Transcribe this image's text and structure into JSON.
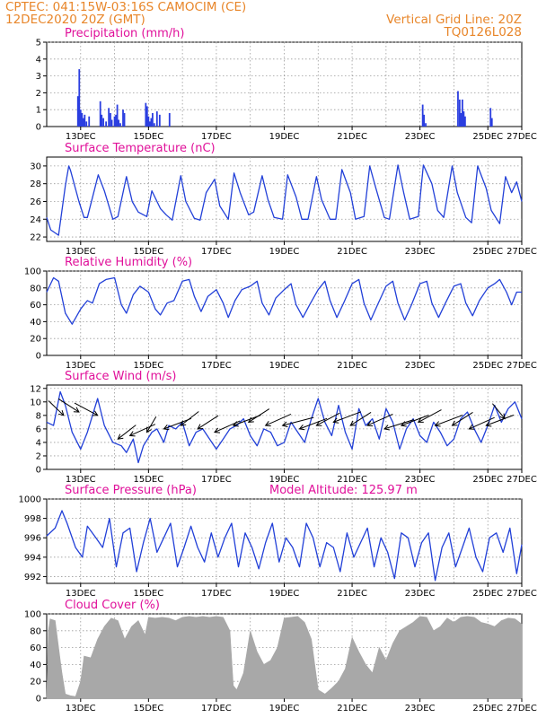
{
  "header": {
    "line1": "CPTEC:   041:15W-03:16S   CAMOCIM (CE)",
    "line2": "12DEC2020 20Z (GMT)",
    "right1": "Vertical Grid Line: 20Z",
    "right2": "TQ0126L028"
  },
  "colors": {
    "line": "#2240d8",
    "bar": "#2b3ee0",
    "cloud": "#a8a8a8",
    "grid": "#9a9a9a",
    "title": "#e0109a",
    "header": "#e8862a"
  },
  "dates": [
    "13DEC",
    "15DEC",
    "17DEC",
    "19DEC",
    "21DEC",
    "23DEC",
    "25DEC",
    "27DEC"
  ],
  "chart_data": [
    {
      "id": "precipitation",
      "type": "bar",
      "title": "Precipitation (mm/h)",
      "ylim": [
        0,
        5
      ],
      "yticks": [
        0,
        1,
        2,
        3,
        4,
        5
      ],
      "x_units": "days after 12DEC2020 20Z",
      "x": [
        0.92,
        0.96,
        1.0,
        1.04,
        1.08,
        1.12,
        1.17,
        1.25,
        1.58,
        1.62,
        1.67,
        1.75,
        1.83,
        1.88,
        1.92,
        2.0,
        2.04,
        2.08,
        2.12,
        2.17,
        2.25,
        2.29,
        2.92,
        2.96,
        3.0,
        3.04,
        3.08,
        3.12,
        3.17,
        3.25,
        3.33,
        3.62,
        11.08,
        11.12,
        11.17,
        12.12,
        12.17,
        12.21,
        12.25,
        12.29,
        12.33,
        13.08,
        13.12
      ],
      "values": [
        1.8,
        3.4,
        1.0,
        0.8,
        0.5,
        0.7,
        0.3,
        0.6,
        1.5,
        0.7,
        0.5,
        0.3,
        1.1,
        0.8,
        0.4,
        0.6,
        0.7,
        1.3,
        0.4,
        0.2,
        1.0,
        0.8,
        1.4,
        1.2,
        0.6,
        0.3,
        0.5,
        0.8,
        0.2,
        0.9,
        0.7,
        0.8,
        1.3,
        0.7,
        0.2,
        2.1,
        1.6,
        0.8,
        1.6,
        0.9,
        0.6,
        1.1,
        0.5
      ]
    },
    {
      "id": "temperature",
      "type": "line",
      "title": "Surface Temperature (nC)",
      "ylim": [
        21.5,
        31
      ],
      "yticks": [
        22,
        24,
        26,
        28,
        30
      ],
      "x_units": "days after 12DEC2020 20Z",
      "x": [
        0,
        0.12,
        0.35,
        0.55,
        0.65,
        0.7,
        0.95,
        1.1,
        1.2,
        1.52,
        1.7,
        1.95,
        2.1,
        2.35,
        2.52,
        2.7,
        2.95,
        3.1,
        3.35,
        3.52,
        3.7,
        3.95,
        4.1,
        4.35,
        4.52,
        4.7,
        4.95,
        5.1,
        5.35,
        5.52,
        5.7,
        5.95,
        6.1,
        6.35,
        6.52,
        6.7,
        6.95,
        7.1,
        7.35,
        7.52,
        7.7,
        7.95,
        8.1,
        8.35,
        8.52,
        8.7,
        8.95,
        9.1,
        9.35,
        9.52,
        9.7,
        9.95,
        10.1,
        10.35,
        10.52,
        10.7,
        10.95,
        11.1,
        11.35,
        11.52,
        11.7,
        11.95,
        12.1,
        12.35,
        12.52,
        12.7,
        12.95,
        13.1,
        13.35,
        13.52,
        13.7,
        13.85,
        14.0
      ],
      "values": [
        24.2,
        22.8,
        22.2,
        27.8,
        30.0,
        29.5,
        26.0,
        24.2,
        24.2,
        29.0,
        27.2,
        24.0,
        24.3,
        28.8,
        26.0,
        24.8,
        24.3,
        27.2,
        25.2,
        24.5,
        23.9,
        28.9,
        26.0,
        24.1,
        23.9,
        27.0,
        28.5,
        25.5,
        24.0,
        29.2,
        27.0,
        24.5,
        24.8,
        28.9,
        26.2,
        24.2,
        24.0,
        29.0,
        26.5,
        24.0,
        24.0,
        28.8,
        26.2,
        24.0,
        24.0,
        29.6,
        27.0,
        24.0,
        24.3,
        30.0,
        27.5,
        24.2,
        24.0,
        30.1,
        27.0,
        24.0,
        24.3,
        30.1,
        28.0,
        25.0,
        24.2,
        30.0,
        27.0,
        24.2,
        23.6,
        30.0,
        27.5,
        25.0,
        23.5,
        28.8,
        27.0,
        28.2,
        26.0
      ]
    },
    {
      "id": "humidity",
      "type": "line",
      "title": "Relative Humidity (%)",
      "ylim": [
        0,
        100
      ],
      "yticks": [
        0,
        20,
        40,
        60,
        80,
        100
      ],
      "x_units": "days after 12DEC2020 20Z",
      "x": [
        0,
        0.2,
        0.35,
        0.55,
        0.75,
        1.0,
        1.2,
        1.35,
        1.55,
        1.75,
        2.0,
        2.2,
        2.35,
        2.55,
        2.75,
        3.0,
        3.2,
        3.35,
        3.55,
        3.75,
        4.0,
        4.2,
        4.35,
        4.55,
        4.75,
        5.0,
        5.2,
        5.35,
        5.55,
        5.75,
        6.0,
        6.2,
        6.35,
        6.55,
        6.75,
        7.0,
        7.2,
        7.35,
        7.55,
        7.75,
        8.0,
        8.2,
        8.35,
        8.55,
        8.75,
        9.0,
        9.2,
        9.35,
        9.55,
        9.75,
        10.0,
        10.2,
        10.35,
        10.55,
        10.75,
        11.0,
        11.2,
        11.35,
        11.55,
        11.75,
        12.0,
        12.2,
        12.35,
        12.55,
        12.75,
        13.0,
        13.2,
        13.35,
        13.55,
        13.7,
        13.85,
        14.0
      ],
      "values": [
        75,
        92,
        88,
        50,
        37,
        55,
        65,
        62,
        85,
        90,
        92,
        60,
        50,
        72,
        82,
        75,
        55,
        48,
        62,
        65,
        88,
        90,
        70,
        52,
        70,
        78,
        62,
        45,
        65,
        78,
        82,
        88,
        62,
        48,
        68,
        78,
        85,
        60,
        45,
        60,
        78,
        88,
        65,
        45,
        62,
        85,
        90,
        62,
        42,
        60,
        82,
        88,
        62,
        42,
        60,
        85,
        88,
        62,
        45,
        62,
        82,
        85,
        62,
        47,
        65,
        80,
        85,
        90,
        75,
        60,
        75,
        75
      ]
    },
    {
      "id": "wind",
      "type": "line",
      "title": "Surface Wind (m/s)",
      "ylim": [
        0,
        12.5
      ],
      "yticks": [
        0,
        2,
        4,
        6,
        8,
        10,
        12
      ],
      "x_units": "days after 12DEC2020 20Z",
      "x": [
        0,
        0.2,
        0.4,
        0.55,
        0.75,
        1.0,
        1.2,
        1.35,
        1.5,
        1.7,
        1.95,
        2.2,
        2.35,
        2.55,
        2.7,
        2.85,
        3.1,
        3.25,
        3.45,
        3.6,
        3.8,
        4.0,
        4.2,
        4.4,
        4.6,
        4.8,
        5.0,
        5.2,
        5.4,
        5.6,
        5.8,
        6.0,
        6.2,
        6.4,
        6.6,
        6.8,
        7.0,
        7.2,
        7.4,
        7.6,
        7.8,
        8.0,
        8.2,
        8.4,
        8.6,
        8.8,
        9.0,
        9.2,
        9.4,
        9.6,
        9.8,
        10.0,
        10.2,
        10.4,
        10.6,
        10.8,
        11.0,
        11.2,
        11.4,
        11.6,
        11.8,
        12.0,
        12.2,
        12.4,
        12.6,
        12.8,
        13.0,
        13.2,
        13.4,
        13.6,
        13.8,
        14.0
      ],
      "values": [
        7.0,
        6.5,
        11.5,
        9.5,
        5.5,
        3.0,
        5.5,
        8.0,
        10.5,
        6.5,
        4.0,
        3.5,
        2.5,
        4.5,
        1.0,
        3.5,
        5.5,
        6.0,
        4.0,
        6.5,
        6.0,
        7.0,
        3.5,
        5.5,
        6.0,
        4.5,
        3.0,
        4.5,
        6.0,
        6.5,
        7.5,
        5.0,
        3.5,
        6.0,
        5.5,
        3.5,
        4.0,
        7.0,
        5.5,
        4.0,
        7.5,
        10.5,
        7.0,
        5.0,
        9.5,
        5.5,
        3.0,
        9.0,
        6.5,
        7.5,
        4.5,
        9.0,
        7.0,
        3.0,
        6.0,
        7.5,
        5.0,
        4.0,
        7.0,
        5.5,
        3.5,
        4.5,
        7.5,
        8.5,
        6.0,
        4.0,
        6.5,
        9.5,
        7.0,
        9.0,
        10.0,
        7.5
      ]
    },
    {
      "id": "pressure",
      "type": "line",
      "title": "Surface Pressure (hPa)",
      "annotation": "Model Altitude: 125.97 m",
      "ylim": [
        991.3,
        1000
      ],
      "yticks": [
        992,
        994,
        996,
        998,
        1000
      ],
      "x_units": "days after 12DEC2020 20Z",
      "x": [
        0,
        0.25,
        0.45,
        0.6,
        0.85,
        1.05,
        1.2,
        1.45,
        1.65,
        1.85,
        2.05,
        2.25,
        2.45,
        2.65,
        2.85,
        3.05,
        3.25,
        3.45,
        3.65,
        3.85,
        4.05,
        4.25,
        4.45,
        4.65,
        4.85,
        5.05,
        5.25,
        5.45,
        5.65,
        5.85,
        6.05,
        6.25,
        6.45,
        6.65,
        6.85,
        7.05,
        7.25,
        7.45,
        7.65,
        7.85,
        8.05,
        8.25,
        8.45,
        8.65,
        8.85,
        9.05,
        9.25,
        9.45,
        9.65,
        9.85,
        10.05,
        10.25,
        10.45,
        10.65,
        10.85,
        11.05,
        11.25,
        11.45,
        11.65,
        11.85,
        12.05,
        12.25,
        12.45,
        12.65,
        12.85,
        13.05,
        13.25,
        13.45,
        13.65,
        13.85,
        14.0
      ],
      "values": [
        996.2,
        997.0,
        998.8,
        997.5,
        995.0,
        994.0,
        997.2,
        996.0,
        995.0,
        998.0,
        993.0,
        996.5,
        997.0,
        992.5,
        995.5,
        998.0,
        994.5,
        996.0,
        997.5,
        993.0,
        995.0,
        997.2,
        995.0,
        993.5,
        996.5,
        994.0,
        996.0,
        997.5,
        993.0,
        996.5,
        995.0,
        992.8,
        995.5,
        997.5,
        993.5,
        996.0,
        995.0,
        993.0,
        997.5,
        996.0,
        993.0,
        995.5,
        995.0,
        992.5,
        996.5,
        994.0,
        995.5,
        997.0,
        993.0,
        996.0,
        994.5,
        991.8,
        996.5,
        996.0,
        993.0,
        995.5,
        996.5,
        991.6,
        995.0,
        996.5,
        993.0,
        995.0,
        997.0,
        994.0,
        992.5,
        996.0,
        996.5,
        994.5,
        997.0,
        992.3,
        995.3
      ]
    },
    {
      "id": "cloud",
      "type": "area",
      "title": "Cloud Cover (%)",
      "ylim": [
        0,
        100
      ],
      "yticks": [
        0,
        20,
        40,
        60,
        80,
        100
      ],
      "x_units": "days after 12DEC2020 20Z",
      "x": [
        0,
        0.05,
        0.1,
        0.25,
        0.4,
        0.45,
        0.55,
        0.7,
        0.85,
        1.0,
        1.1,
        1.3,
        1.5,
        1.7,
        1.9,
        2.1,
        2.3,
        2.5,
        2.7,
        2.9,
        3.0,
        3.2,
        3.4,
        3.6,
        3.8,
        4.0,
        4.2,
        4.4,
        4.6,
        4.8,
        5.0,
        5.2,
        5.4,
        5.5,
        5.6,
        5.8,
        6.0,
        6.2,
        6.4,
        6.6,
        6.8,
        7.0,
        7.2,
        7.4,
        7.6,
        7.8,
        8.0,
        8.2,
        8.4,
        8.6,
        8.8,
        9.0,
        9.2,
        9.4,
        9.6,
        9.8,
        10.0,
        10.2,
        10.4,
        10.6,
        10.8,
        11.0,
        11.2,
        11.4,
        11.6,
        11.8,
        12.0,
        12.2,
        12.4,
        12.6,
        12.8,
        13.0,
        13.2,
        13.4,
        13.6,
        13.8,
        14.0
      ],
      "values": [
        2,
        80,
        94,
        92,
        45,
        30,
        5,
        3,
        2,
        20,
        50,
        48,
        70,
        85,
        95,
        92,
        70,
        85,
        92,
        75,
        96,
        95,
        96,
        95,
        92,
        96,
        97,
        96,
        97,
        96,
        97,
        96,
        80,
        15,
        10,
        30,
        80,
        55,
        40,
        45,
        60,
        95,
        96,
        97,
        90,
        70,
        10,
        5,
        12,
        20,
        35,
        72,
        55,
        40,
        30,
        60,
        45,
        65,
        80,
        85,
        90,
        97,
        96,
        80,
        85,
        95,
        90,
        96,
        97,
        96,
        90,
        88,
        85,
        92,
        95,
        94,
        88
      ]
    },
    {
      "id": "wind_vectors",
      "type": "scatter",
      "title": "",
      "x_units": "days after 12DEC2020 20Z",
      "x": [
        0.5,
        0.95,
        1.5,
        2.1,
        2.45,
        2.95,
        3.45,
        3.95,
        4.45,
        4.95,
        5.5,
        5.95,
        6.45,
        6.95,
        7.45,
        7.95,
        8.45,
        8.95,
        9.45,
        9.95,
        10.45,
        10.95,
        11.45,
        11.95,
        12.45,
        12.95,
        13.5
      ],
      "speed": [
        8.0,
        8.5,
        8.0,
        4.5,
        5.0,
        5.5,
        6.0,
        6.5,
        6.0,
        5.5,
        6.5,
        7.0,
        6.5,
        6.5,
        6.0,
        6.5,
        7.0,
        6.5,
        6.5,
        6.0,
        6.5,
        7.0,
        6.5,
        6.5,
        6.0,
        6.5,
        7.5
      ],
      "direction_deg": [
        115,
        125,
        130,
        60,
        45,
        75,
        40,
        60,
        55,
        45,
        40,
        55,
        45,
        30,
        40,
        50,
        40,
        55,
        45,
        35,
        40,
        50,
        40,
        55,
        45,
        40,
        110
      ]
    }
  ]
}
